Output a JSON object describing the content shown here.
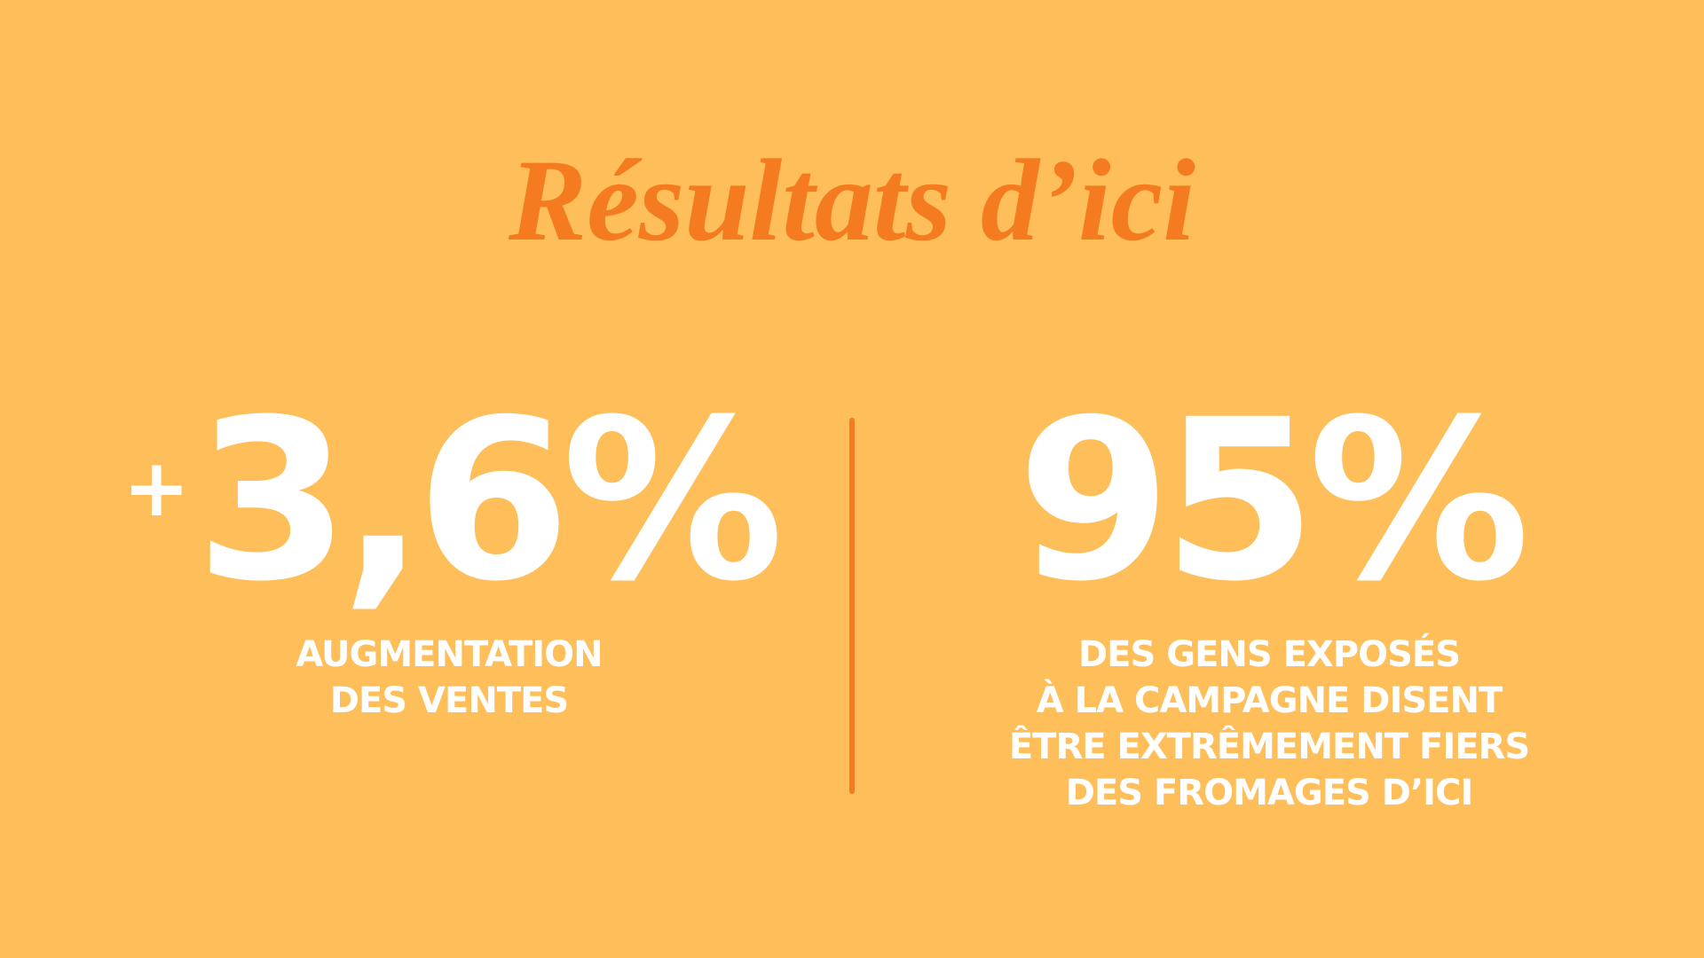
{
  "title": "Résultats d’ici",
  "stats": [
    {
      "prefix": "+",
      "value": "3,6%",
      "label_lines": [
        "AUGMENTATION",
        "DES VENTES"
      ]
    },
    {
      "value": "95%",
      "label_lines": [
        "DES GENS EXPOSÉS",
        "À LA CAMPAGNE DISENT",
        "ÊTRE EXTRÊMEMENT FIERS",
        "DES FROMAGES D’ICI"
      ]
    }
  ]
}
